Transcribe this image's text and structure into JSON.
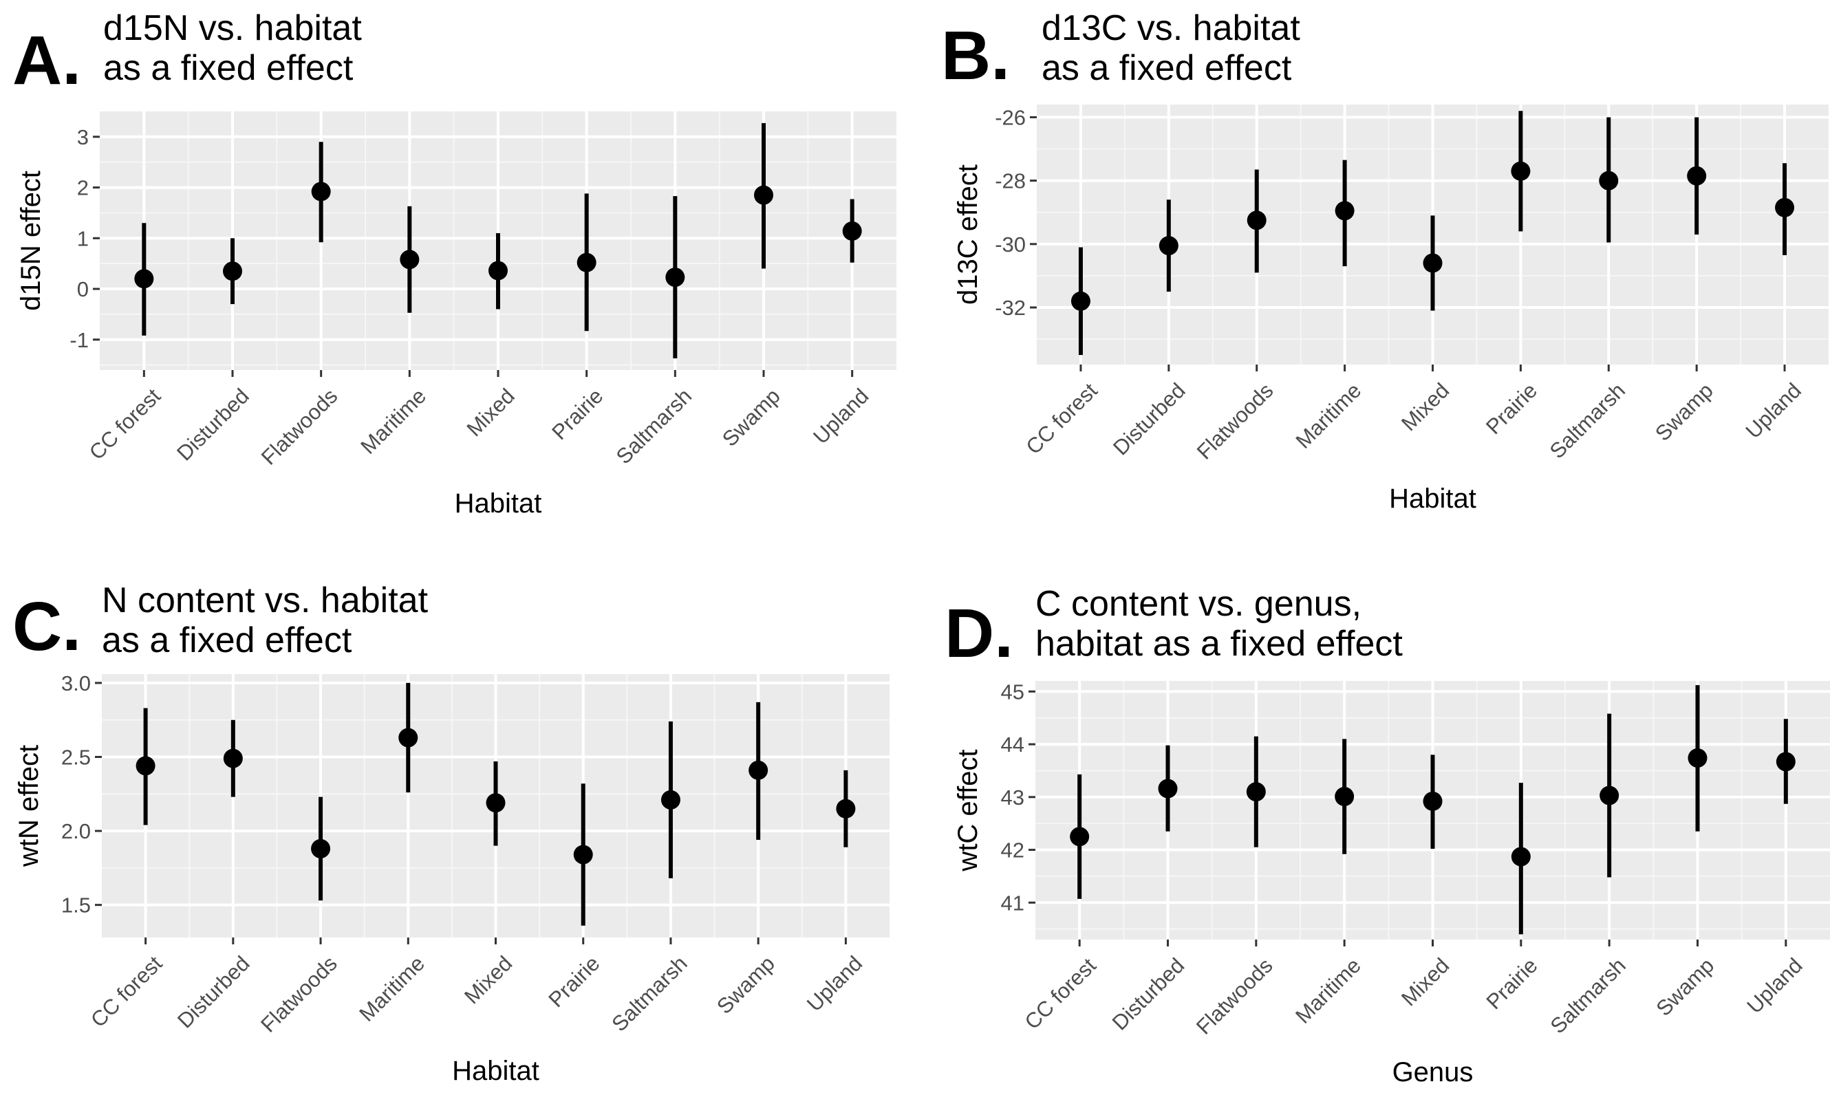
{
  "chart_data": [
    {
      "type": "pointrange",
      "panel_label": "A.",
      "title": [
        "d15N vs. habitat",
        "as a fixed effect"
      ],
      "xlabel": "Habitat",
      "ylabel": "d15N effect",
      "categories": [
        "CC forest",
        "Disturbed",
        "Flatwoods",
        "Maritime",
        "Mixed",
        "Prairie",
        "Saltmarsh",
        "Swamp",
        "Upland"
      ],
      "values": [
        0.2,
        0.35,
        1.92,
        0.58,
        0.36,
        0.52,
        0.23,
        1.85,
        1.14
      ],
      "lower": [
        -0.92,
        -0.3,
        0.92,
        -0.47,
        -0.4,
        -0.83,
        -1.37,
        0.4,
        0.52
      ],
      "upper": [
        1.3,
        1.0,
        2.9,
        1.63,
        1.1,
        1.88,
        1.83,
        3.27,
        1.77
      ],
      "yticks": [
        -1,
        0,
        1,
        2,
        3
      ],
      "ylim": [
        -1.6,
        3.5
      ],
      "grid": true
    },
    {
      "type": "pointrange",
      "panel_label": "B.",
      "title": [
        "d13C vs. habitat",
        "as a fixed effect"
      ],
      "xlabel": "Habitat",
      "ylabel": "d13C effect",
      "categories": [
        "CC forest",
        "Disturbed",
        "Flatwoods",
        "Maritime",
        "Mixed",
        "Prairie",
        "Saltmarsh",
        "Swamp",
        "Upland"
      ],
      "values": [
        -31.8,
        -30.05,
        -29.25,
        -28.95,
        -30.6,
        -27.7,
        -28.0,
        -27.85,
        -28.85
      ],
      "lower": [
        -33.5,
        -31.5,
        -30.9,
        -30.7,
        -32.1,
        -29.6,
        -29.95,
        -29.7,
        -30.35
      ],
      "upper": [
        -30.1,
        -28.6,
        -27.65,
        -27.35,
        -29.1,
        -25.8,
        -26.0,
        -26.0,
        -27.45
      ],
      "yticks": [
        -32,
        -30,
        -28,
        -26
      ],
      "ylim": [
        -33.8,
        -25.6
      ],
      "grid": true
    },
    {
      "type": "pointrange",
      "panel_label": "C.",
      "title": [
        "N content vs. habitat",
        "as a fixed effect"
      ],
      "xlabel": "Habitat",
      "ylabel": "wtN effect",
      "categories": [
        "CC forest",
        "Disturbed",
        "Flatwoods",
        "Maritime",
        "Mixed",
        "Prairie",
        "Saltmarsh",
        "Swamp",
        "Upland"
      ],
      "values": [
        2.44,
        2.49,
        1.88,
        2.63,
        2.19,
        1.84,
        2.21,
        2.41,
        2.15
      ],
      "lower": [
        2.04,
        2.23,
        1.53,
        2.26,
        1.9,
        1.36,
        1.68,
        1.94,
        1.89
      ],
      "upper": [
        2.83,
        2.75,
        2.23,
        3.0,
        2.47,
        2.32,
        2.74,
        2.87,
        2.41
      ],
      "yticks": [
        "1.5",
        "2.0",
        "2.5",
        "3.0"
      ],
      "ytick_values": [
        1.5,
        2.0,
        2.5,
        3.0
      ],
      "ylim": [
        1.28,
        3.06
      ],
      "grid": true
    },
    {
      "type": "pointrange",
      "panel_label": "D.",
      "title": [
        "C content vs. genus,",
        "habitat as a fixed effect"
      ],
      "xlabel": "Genus",
      "ylabel": "wtC effect",
      "categories": [
        "CC forest",
        "Disturbed",
        "Flatwoods",
        "Maritime",
        "Mixed",
        "Prairie",
        "Saltmarsh",
        "Swamp",
        "Upland"
      ],
      "values": [
        42.25,
        43.16,
        43.1,
        43.01,
        42.92,
        41.87,
        43.03,
        43.74,
        43.67
      ],
      "lower": [
        41.07,
        42.35,
        42.05,
        41.92,
        42.02,
        40.4,
        41.48,
        42.35,
        42.87
      ],
      "upper": [
        43.43,
        43.98,
        44.15,
        44.1,
        43.8,
        43.27,
        44.58,
        45.12,
        44.48
      ],
      "yticks": [
        41,
        42,
        43,
        44,
        45
      ],
      "ylim": [
        40.3,
        45.2
      ],
      "grid": true
    }
  ]
}
